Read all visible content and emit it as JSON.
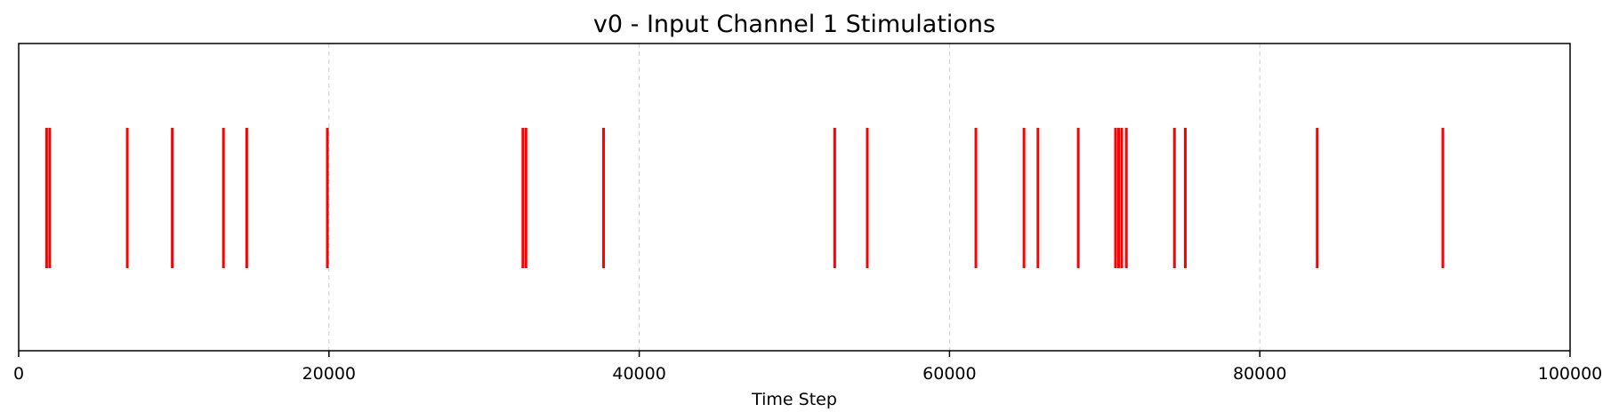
{
  "chart_data": {
    "type": "eventplot",
    "title": "v0 - Input Channel 1 Stimulations",
    "xlabel": "Time Step",
    "ylabel": "",
    "xlim": [
      0,
      100000
    ],
    "x_ticks": [
      0,
      20000,
      40000,
      60000,
      80000,
      100000
    ],
    "x_tick_labels": [
      "0",
      "20000",
      "40000",
      "60000",
      "80000",
      "100000"
    ],
    "grid": {
      "x": true,
      "y": false,
      "style": "dashed"
    },
    "legend": null,
    "series": [
      {
        "color": "#ff0000",
        "events": [
          1800,
          2000,
          7000,
          9900,
          13200,
          14700,
          19900,
          32500,
          32700,
          37700,
          52600,
          54700,
          61700,
          64800,
          65700,
          68300,
          70700,
          70900,
          71100,
          71400,
          74500,
          75200,
          83700,
          91800
        ]
      }
    ]
  },
  "colors": {
    "event": "#ff0000",
    "grid": "#cccccc",
    "axes": "#000000",
    "background": "#ffffff"
  }
}
